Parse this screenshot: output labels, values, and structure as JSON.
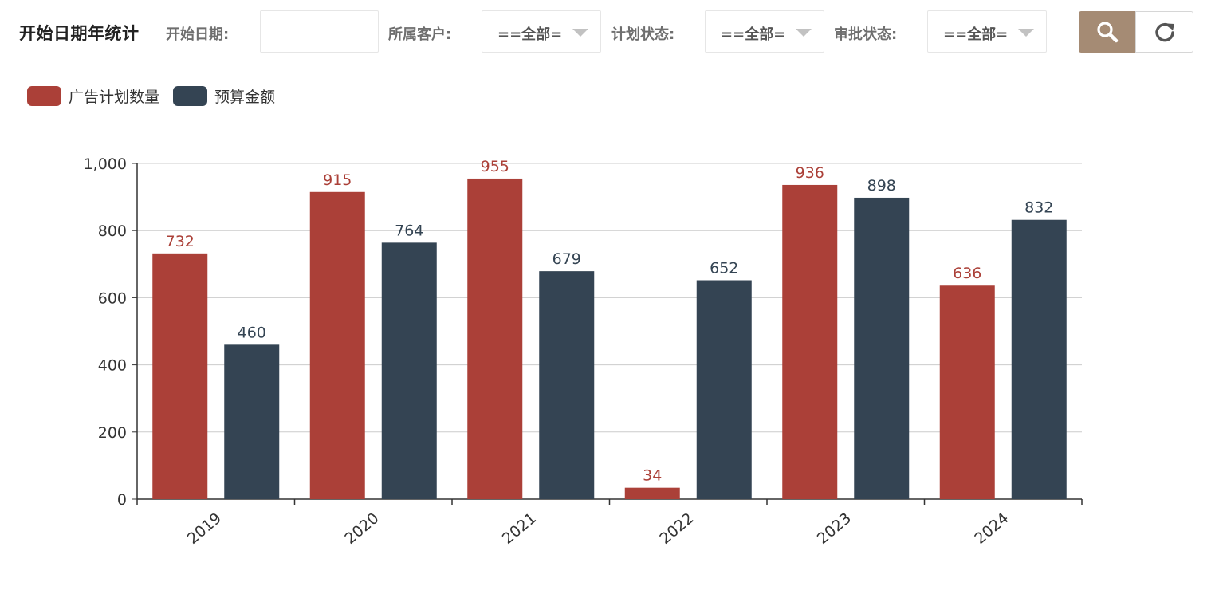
{
  "header": {
    "title": "开始日期年统计",
    "start_date_label": "开始日期:",
    "start_date_value": "",
    "start_date_placeholder": "",
    "customer_label": "所属客户:",
    "customer_value": "==全部=",
    "plan_status_label": "计划状态:",
    "plan_status_value": "==全部=",
    "approval_status_label": "审批状态:",
    "approval_status_value": "==全部=",
    "search_icon": "search-icon",
    "refresh_icon": "refresh-icon"
  },
  "colors": {
    "search_button": "#a58b74",
    "series_1": "#ab4038",
    "series_2": "#344453",
    "axis": "#333333",
    "grid": "#cccccc"
  },
  "chart_data": {
    "type": "bar",
    "categories": [
      "2019",
      "2020",
      "2021",
      "2022",
      "2023",
      "2024"
    ],
    "series": [
      {
        "name": "广告计划数量",
        "values": [
          732,
          915,
          955,
          34,
          936,
          636
        ],
        "color": "#ab4038"
      },
      {
        "name": "预算金额",
        "values": [
          460,
          764,
          679,
          652,
          898,
          832
        ],
        "color": "#344453"
      }
    ],
    "ylim": [
      0,
      1000
    ],
    "yticks": [
      0,
      200,
      400,
      600,
      800,
      1000
    ],
    "ytick_labels": [
      "0",
      "200",
      "400",
      "600",
      "800",
      "1,000"
    ],
    "title": "",
    "xlabel": "",
    "ylabel": "",
    "grid": true,
    "legend_position": "top-left",
    "data_labels": true,
    "xtick_rotation": 40
  }
}
